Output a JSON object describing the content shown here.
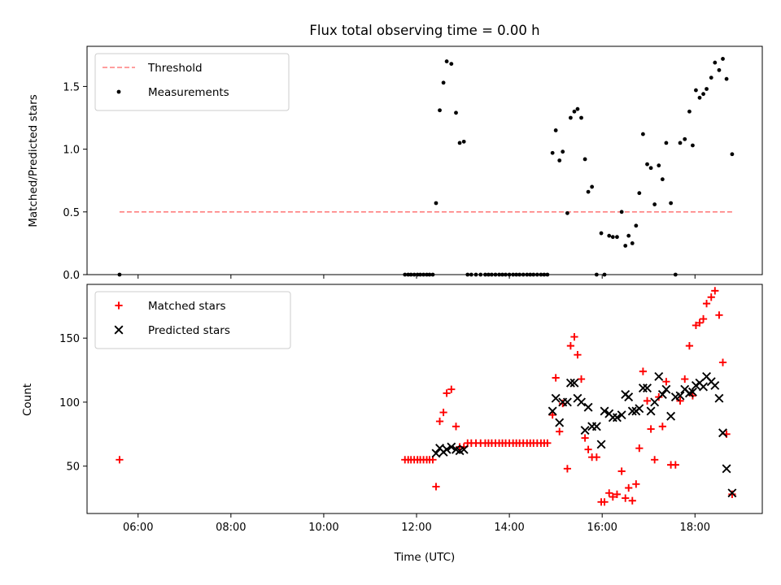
{
  "chart_data": [
    {
      "type": "scatter",
      "title": "Flux total observing time = 0.00 h",
      "xlabel": "",
      "ylabel": "Matched/Predicted stars",
      "xlim": [
        4.9,
        19.45
      ],
      "ylim": [
        0.0,
        1.82
      ],
      "yticks": [
        {
          "value": 0.0,
          "label": "0.0"
        },
        {
          "value": 0.5,
          "label": "0.5"
        },
        {
          "value": 1.0,
          "label": "1.0"
        },
        {
          "value": 1.5,
          "label": "1.5"
        }
      ],
      "legend_position": "upper-left",
      "threshold": {
        "name": "Threshold",
        "value": 0.5,
        "x_range": [
          5.6,
          18.8
        ],
        "color": "#ff7f7f",
        "style": "dashed"
      },
      "series": [
        {
          "name": "Measurements",
          "marker": "dot",
          "color": "#000000",
          "points": [
            [
              5.6,
              0.0
            ],
            [
              11.75,
              0.0
            ],
            [
              11.82,
              0.0
            ],
            [
              11.88,
              0.0
            ],
            [
              11.95,
              0.0
            ],
            [
              12.02,
              0.0
            ],
            [
              12.08,
              0.0
            ],
            [
              12.15,
              0.0
            ],
            [
              12.22,
              0.0
            ],
            [
              12.28,
              0.0
            ],
            [
              12.35,
              0.0
            ],
            [
              12.42,
              0.57
            ],
            [
              12.5,
              1.31
            ],
            [
              12.58,
              1.53
            ],
            [
              12.65,
              1.7
            ],
            [
              12.75,
              1.68
            ],
            [
              12.85,
              1.29
            ],
            [
              12.93,
              1.05
            ],
            [
              13.02,
              1.06
            ],
            [
              13.1,
              0.0
            ],
            [
              13.18,
              0.0
            ],
            [
              13.28,
              0.0
            ],
            [
              13.38,
              0.0
            ],
            [
              13.48,
              0.0
            ],
            [
              13.55,
              0.0
            ],
            [
              13.62,
              0.0
            ],
            [
              13.7,
              0.0
            ],
            [
              13.78,
              0.0
            ],
            [
              13.85,
              0.0
            ],
            [
              13.92,
              0.0
            ],
            [
              14.0,
              0.0
            ],
            [
              14.08,
              0.0
            ],
            [
              14.15,
              0.0
            ],
            [
              14.22,
              0.0
            ],
            [
              14.3,
              0.0
            ],
            [
              14.38,
              0.0
            ],
            [
              14.45,
              0.0
            ],
            [
              14.52,
              0.0
            ],
            [
              14.6,
              0.0
            ],
            [
              14.68,
              0.0
            ],
            [
              14.75,
              0.0
            ],
            [
              14.82,
              0.0
            ],
            [
              14.93,
              0.97
            ],
            [
              15.0,
              1.15
            ],
            [
              15.08,
              0.91
            ],
            [
              15.15,
              0.98
            ],
            [
              15.25,
              0.49
            ],
            [
              15.32,
              1.25
            ],
            [
              15.4,
              1.3
            ],
            [
              15.47,
              1.32
            ],
            [
              15.55,
              1.25
            ],
            [
              15.63,
              0.92
            ],
            [
              15.7,
              0.66
            ],
            [
              15.78,
              0.7
            ],
            [
              15.88,
              0.0
            ],
            [
              15.98,
              0.33
            ],
            [
              16.05,
              0.0
            ],
            [
              16.15,
              0.31
            ],
            [
              16.23,
              0.3
            ],
            [
              16.32,
              0.3
            ],
            [
              16.42,
              0.5
            ],
            [
              16.5,
              0.23
            ],
            [
              16.57,
              0.31
            ],
            [
              16.65,
              0.25
            ],
            [
              16.73,
              0.39
            ],
            [
              16.8,
              0.65
            ],
            [
              16.88,
              1.12
            ],
            [
              16.97,
              0.88
            ],
            [
              17.05,
              0.85
            ],
            [
              17.13,
              0.56
            ],
            [
              17.22,
              0.87
            ],
            [
              17.3,
              0.76
            ],
            [
              17.38,
              1.05
            ],
            [
              17.48,
              0.57
            ],
            [
              17.58,
              0.0
            ],
            [
              17.68,
              1.05
            ],
            [
              17.78,
              1.08
            ],
            [
              17.88,
              1.3
            ],
            [
              17.95,
              1.03
            ],
            [
              18.02,
              1.47
            ],
            [
              18.1,
              1.41
            ],
            [
              18.18,
              1.44
            ],
            [
              18.25,
              1.48
            ],
            [
              18.35,
              1.57
            ],
            [
              18.43,
              1.69
            ],
            [
              18.52,
              1.63
            ],
            [
              18.6,
              1.72
            ],
            [
              18.68,
              1.56
            ],
            [
              18.8,
              0.96
            ]
          ]
        }
      ]
    },
    {
      "type": "scatter",
      "title": "",
      "xlabel": "Time (UTC)",
      "ylabel": "Count",
      "xlim": [
        4.9,
        19.45
      ],
      "ylim": [
        13,
        192
      ],
      "xticks": [
        {
          "value": 6,
          "label": "06:00"
        },
        {
          "value": 8,
          "label": "08:00"
        },
        {
          "value": 10,
          "label": "10:00"
        },
        {
          "value": 12,
          "label": "12:00"
        },
        {
          "value": 14,
          "label": "14:00"
        },
        {
          "value": 16,
          "label": "16:00"
        },
        {
          "value": 18,
          "label": "18:00"
        }
      ],
      "yticks": [
        {
          "value": 50,
          "label": "50"
        },
        {
          "value": 100,
          "label": "100"
        },
        {
          "value": 150,
          "label": "150"
        }
      ],
      "legend_position": "upper-left",
      "series": [
        {
          "name": "Matched stars",
          "marker": "plus",
          "color": "#ff0000",
          "points": [
            [
              5.6,
              55
            ],
            [
              11.75,
              55
            ],
            [
              11.82,
              55
            ],
            [
              11.88,
              55
            ],
            [
              11.95,
              55
            ],
            [
              12.02,
              55
            ],
            [
              12.08,
              55
            ],
            [
              12.15,
              55
            ],
            [
              12.22,
              55
            ],
            [
              12.28,
              55
            ],
            [
              12.35,
              55
            ],
            [
              12.42,
              34
            ],
            [
              12.5,
              85
            ],
            [
              12.58,
              92
            ],
            [
              12.65,
              107
            ],
            [
              12.75,
              110
            ],
            [
              12.85,
              81
            ],
            [
              12.93,
              65
            ],
            [
              13.02,
              65
            ],
            [
              13.1,
              68
            ],
            [
              13.18,
              68
            ],
            [
              13.28,
              68
            ],
            [
              13.38,
              68
            ],
            [
              13.48,
              68
            ],
            [
              13.55,
              68
            ],
            [
              13.62,
              68
            ],
            [
              13.7,
              68
            ],
            [
              13.78,
              68
            ],
            [
              13.85,
              68
            ],
            [
              13.92,
              68
            ],
            [
              14.0,
              68
            ],
            [
              14.08,
              68
            ],
            [
              14.15,
              68
            ],
            [
              14.22,
              68
            ],
            [
              14.3,
              68
            ],
            [
              14.38,
              68
            ],
            [
              14.45,
              68
            ],
            [
              14.52,
              68
            ],
            [
              14.6,
              68
            ],
            [
              14.68,
              68
            ],
            [
              14.75,
              68
            ],
            [
              14.82,
              68
            ],
            [
              14.93,
              90
            ],
            [
              15.0,
              119
            ],
            [
              15.08,
              77
            ],
            [
              15.15,
              99
            ],
            [
              15.25,
              48
            ],
            [
              15.32,
              144
            ],
            [
              15.4,
              151
            ],
            [
              15.47,
              137
            ],
            [
              15.55,
              118
            ],
            [
              15.63,
              72
            ],
            [
              15.7,
              63
            ],
            [
              15.78,
              57
            ],
            [
              15.88,
              57
            ],
            [
              15.98,
              22
            ],
            [
              16.05,
              22
            ],
            [
              16.15,
              29
            ],
            [
              16.23,
              26
            ],
            [
              16.32,
              28
            ],
            [
              16.42,
              46
            ],
            [
              16.5,
              25
            ],
            [
              16.57,
              33
            ],
            [
              16.65,
              23
            ],
            [
              16.73,
              36
            ],
            [
              16.8,
              64
            ],
            [
              16.88,
              124
            ],
            [
              16.97,
              101
            ],
            [
              17.05,
              79
            ],
            [
              17.13,
              55
            ],
            [
              17.22,
              104
            ],
            [
              17.3,
              81
            ],
            [
              17.38,
              116
            ],
            [
              17.48,
              51
            ],
            [
              17.58,
              51
            ],
            [
              17.68,
              101
            ],
            [
              17.78,
              118
            ],
            [
              17.88,
              144
            ],
            [
              17.95,
              105
            ],
            [
              18.02,
              160
            ],
            [
              18.1,
              162
            ],
            [
              18.18,
              165
            ],
            [
              18.25,
              177
            ],
            [
              18.35,
              182
            ],
            [
              18.43,
              187
            ],
            [
              18.52,
              168
            ],
            [
              18.6,
              131
            ],
            [
              18.68,
              75
            ],
            [
              18.8,
              28
            ]
          ]
        },
        {
          "name": "Predicted stars",
          "marker": "x",
          "color": "#000000",
          "points": [
            [
              12.42,
              60
            ],
            [
              12.5,
              64
            ],
            [
              12.58,
              61
            ],
            [
              12.65,
              63
            ],
            [
              12.75,
              65
            ],
            [
              12.85,
              63
            ],
            [
              12.93,
              62
            ],
            [
              13.02,
              63
            ],
            [
              14.93,
              93
            ],
            [
              15.0,
              103
            ],
            [
              15.08,
              84
            ],
            [
              15.15,
              100
            ],
            [
              15.25,
              100
            ],
            [
              15.32,
              115
            ],
            [
              15.4,
              115
            ],
            [
              15.47,
              103
            ],
            [
              15.55,
              100
            ],
            [
              15.63,
              78
            ],
            [
              15.7,
              96
            ],
            [
              15.78,
              81
            ],
            [
              15.88,
              81
            ],
            [
              15.98,
              67
            ],
            [
              16.05,
              93
            ],
            [
              16.15,
              91
            ],
            [
              16.23,
              88
            ],
            [
              16.32,
              88
            ],
            [
              16.42,
              90
            ],
            [
              16.5,
              106
            ],
            [
              16.57,
              104
            ],
            [
              16.65,
              93
            ],
            [
              16.73,
              93
            ],
            [
              16.8,
              95
            ],
            [
              16.88,
              111
            ],
            [
              16.97,
              111
            ],
            [
              17.05,
              93
            ],
            [
              17.13,
              100
            ],
            [
              17.22,
              120
            ],
            [
              17.3,
              106
            ],
            [
              17.38,
              110
            ],
            [
              17.48,
              89
            ],
            [
              17.58,
              104
            ],
            [
              17.68,
              105
            ],
            [
              17.78,
              110
            ],
            [
              17.88,
              107
            ],
            [
              17.95,
              108
            ],
            [
              18.02,
              113
            ],
            [
              18.1,
              115
            ],
            [
              18.18,
              112
            ],
            [
              18.25,
              120
            ],
            [
              18.35,
              116
            ],
            [
              18.43,
              113
            ],
            [
              18.52,
              103
            ],
            [
              18.6,
              76
            ],
            [
              18.68,
              48
            ],
            [
              18.8,
              29
            ]
          ]
        }
      ]
    }
  ]
}
